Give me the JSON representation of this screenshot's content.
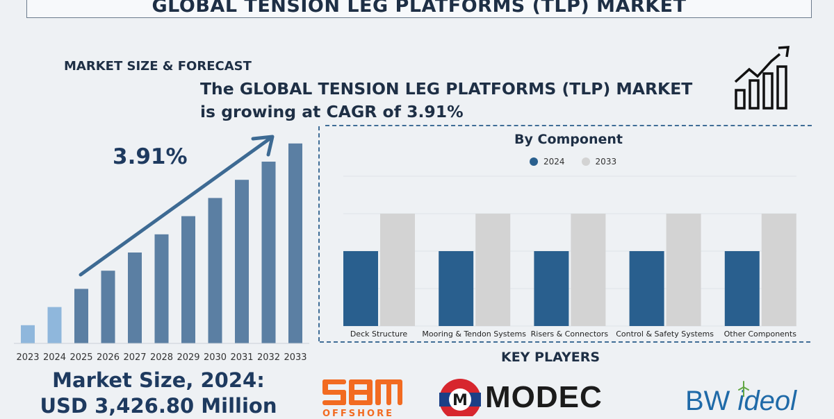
{
  "banner": {
    "title": "GLOBAL TENSION LEG PLATFORMS (TLP) MARKET"
  },
  "section_label": "MARKET SIZE & FORECAST",
  "headline": {
    "line1": "The GLOBAL TENSION LEG PLATFORMS (TLP) MARKET",
    "line2": "is growing at CAGR of 3.91%"
  },
  "cagr_value": "3.91%",
  "market_size": {
    "line1": "Market Size, 2024:",
    "line2": "USD 3,426.80 Million"
  },
  "key_players": {
    "title": "KEY PLAYERS",
    "logos": [
      {
        "name": "SBM OFFSHORE",
        "text": "SBM",
        "subtext": "OFFSHORE",
        "color": "#f26b21"
      },
      {
        "name": "MODEC",
        "text": "MODEC",
        "color": "#1b1b1b",
        "accent": "#d7262e"
      },
      {
        "name": "BW Ideol",
        "text_bw": "BW ",
        "text_ideol": "ideol",
        "color": "#1f6aa8"
      }
    ]
  },
  "colors": {
    "bar_light": "#8fb7dc",
    "bar_dark": "#5b7fa3",
    "series_2024": "#295f8e",
    "series_2033": "#d3d3d3",
    "arrow": "#3d6a93",
    "dashed": "#3f6d96"
  },
  "icons": [
    "growth-chart-icon",
    "trend-arrow-icon"
  ],
  "chart_data": [
    {
      "type": "bar",
      "categories": [
        "2023",
        "2024",
        "2025",
        "2026",
        "2027",
        "2028",
        "2029",
        "2030",
        "2031",
        "2032",
        "2033"
      ],
      "values": [
        1,
        2,
        3,
        4,
        5,
        6,
        7,
        8,
        9,
        10,
        11
      ],
      "title": "",
      "xlabel": "",
      "ylabel": "",
      "grid": false,
      "annotation": "3.91%",
      "highlighted_categories": [
        "2023",
        "2024"
      ]
    },
    {
      "type": "bar",
      "title": "By Component",
      "categories": [
        "Deck Structure",
        "Mooring & Tendon Systems",
        "Risers & Connectors",
        "Control & Safety Systems",
        "Other Components"
      ],
      "series": [
        {
          "name": "2024",
          "values": [
            2,
            2,
            2,
            2,
            2
          ]
        },
        {
          "name": "2033",
          "values": [
            3,
            3,
            3,
            3,
            3
          ]
        }
      ],
      "ylim": [
        0,
        4
      ],
      "grid": true,
      "legend": "top-center"
    }
  ]
}
